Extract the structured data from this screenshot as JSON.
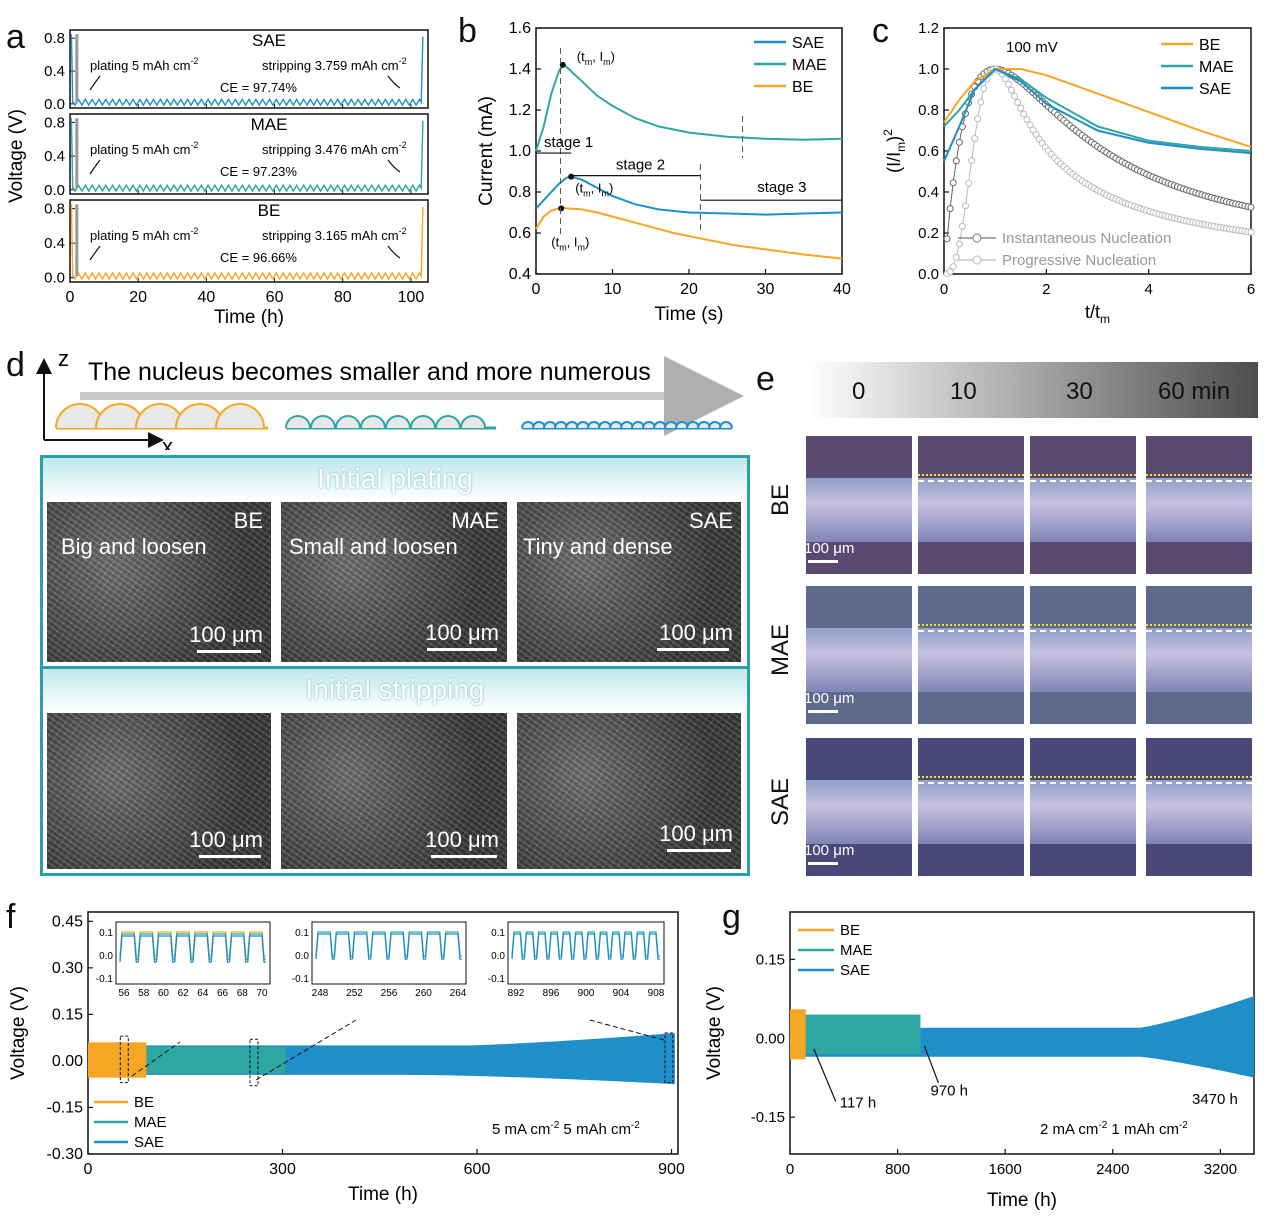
{
  "colors": {
    "BE": "#f5a623",
    "MAE": "#2ea6a1",
    "SAE": "#1f8fc9",
    "gray": "#9a9a9a",
    "teal": "#2aa0a8",
    "yellow": "#f4e21c"
  },
  "panel_labels": {
    "a": "a",
    "b": "b",
    "c": "c",
    "d": "d",
    "e": "e",
    "f": "f",
    "g": "g"
  },
  "chart_data": [
    {
      "id": "a",
      "type": "line",
      "xlabel": "Time (h)",
      "ylabel": "Voltage (V)",
      "x_ticks": [
        "0",
        "20",
        "40",
        "60",
        "80",
        "100"
      ],
      "xlim": [
        0,
        105
      ],
      "y_ticks": [
        "0.0",
        "0.4",
        "0.8"
      ],
      "ylim": [
        -0.05,
        0.9
      ],
      "subplots": [
        {
          "name": "SAE",
          "plating": "plating 5 mAh cm",
          "stripping": "stripping 3.759 mAh cm",
          "ce": "CE = 97.74%"
        },
        {
          "name": "MAE",
          "plating": "plating 5 mAh cm",
          "stripping": "stripping 3.476 mAh cm",
          "ce": "CE = 97.23%"
        },
        {
          "name": "BE",
          "plating": "plating 5 mAh cm",
          "stripping": "stripping 3.165 mAh cm",
          "ce": "CE = 96.66%"
        }
      ],
      "exponent": "-2"
    },
    {
      "id": "b",
      "type": "line",
      "xlabel": "Time (s)",
      "ylabel": "Current (mA)",
      "x_ticks": [
        "0",
        "10",
        "20",
        "30",
        "40"
      ],
      "xlim": [
        0,
        40
      ],
      "y_ticks": [
        "0.4",
        "0.6",
        "0.8",
        "1.0",
        "1.2",
        "1.4",
        "1.6"
      ],
      "ylim": [
        0.4,
        1.6
      ],
      "legend": [
        "SAE",
        "MAE",
        "BE"
      ],
      "legend_position": "top-right",
      "series": [
        {
          "name": "MAE",
          "x": [
            0,
            1,
            2,
            3,
            3.5,
            4,
            6,
            8,
            10,
            13,
            16,
            20,
            25,
            30,
            35,
            40
          ],
          "y": [
            1.0,
            1.12,
            1.28,
            1.39,
            1.42,
            1.41,
            1.34,
            1.27,
            1.22,
            1.16,
            1.12,
            1.09,
            1.07,
            1.06,
            1.055,
            1.06
          ]
        },
        {
          "name": "SAE",
          "x": [
            0,
            1,
            2,
            3,
            4,
            4.6,
            6,
            8,
            10,
            13,
            16,
            20,
            25,
            30,
            35,
            40
          ],
          "y": [
            0.72,
            0.76,
            0.8,
            0.84,
            0.87,
            0.875,
            0.86,
            0.82,
            0.78,
            0.74,
            0.715,
            0.7,
            0.695,
            0.69,
            0.695,
            0.7
          ]
        },
        {
          "name": "BE",
          "x": [
            0,
            1,
            2,
            3,
            3.5,
            4,
            6,
            8,
            10,
            14,
            18,
            22,
            26,
            30,
            35,
            40
          ],
          "y": [
            0.62,
            0.68,
            0.71,
            0.72,
            0.725,
            0.72,
            0.715,
            0.7,
            0.68,
            0.64,
            0.6,
            0.57,
            0.54,
            0.52,
            0.495,
            0.475
          ]
        }
      ],
      "annotations": {
        "tm_label": "(t",
        "im_label": ", I",
        "stage1": "stage 1",
        "stage2": "stage 2",
        "stage3": "stage 3",
        "m": "m"
      }
    },
    {
      "id": "c",
      "type": "line",
      "xlabel": "t/t",
      "xlabel_sub": "m",
      "ylabel": "(I/I",
      "ylabel_sub": "m",
      "ylabel_tail": ")",
      "ylabel_sup": "2",
      "x_ticks": [
        "0",
        "2",
        "4",
        "6"
      ],
      "xlim": [
        0,
        6
      ],
      "y_ticks": [
        "0.0",
        "0.2",
        "0.4",
        "0.6",
        "0.8",
        "1.0",
        "1.2"
      ],
      "ylim": [
        0,
        1.2
      ],
      "title": "100 mV",
      "legend": [
        "BE",
        "MAE",
        "SAE"
      ],
      "legend_position": "top-right",
      "model_legend": [
        "Instantaneous Nucleation",
        "Progressive Nucleation"
      ],
      "series": [
        {
          "name": "BE",
          "x": [
            0,
            0.3,
            0.6,
            1,
            1.5,
            2,
            3,
            4,
            5,
            6
          ],
          "y": [
            0.74,
            0.85,
            0.94,
            1.0,
            1.0,
            0.97,
            0.88,
            0.79,
            0.7,
            0.62
          ]
        },
        {
          "name": "MAE",
          "x": [
            0,
            0.3,
            0.6,
            1,
            1.5,
            2,
            3,
            4,
            5,
            6
          ],
          "y": [
            0.72,
            0.8,
            0.9,
            1.0,
            0.95,
            0.86,
            0.72,
            0.65,
            0.62,
            0.6
          ]
        },
        {
          "name": "SAE",
          "x": [
            0,
            0.3,
            0.6,
            1,
            1.5,
            2,
            3,
            4,
            5,
            6
          ],
          "y": [
            0.55,
            0.72,
            0.9,
            1.0,
            0.94,
            0.83,
            0.7,
            0.64,
            0.61,
            0.59
          ]
        }
      ]
    },
    {
      "id": "f",
      "type": "line",
      "xlabel": "Time (h)",
      "ylabel": "Voltage (V)",
      "x_ticks": [
        "0",
        "300",
        "600",
        "900"
      ],
      "xlim": [
        0,
        910
      ],
      "y_ticks": [
        "-0.30",
        "-0.15",
        "0.00",
        "0.15",
        "0.30",
        "0.45"
      ],
      "ylim": [
        -0.3,
        0.48
      ],
      "legend": [
        "BE",
        "MAE",
        "SAE"
      ],
      "legend_position": "bottom-left",
      "condition": "5 mA cm",
      "condition_mid": " 5 mAh cm",
      "exponent": "-2",
      "end_hours": {
        "BE": 90,
        "MAE": 305,
        "SAE": 905
      },
      "insets": [
        {
          "x_ticks": [
            "56",
            "58",
            "60",
            "62",
            "64",
            "66",
            "68",
            "70"
          ],
          "y_ticks": [
            "0.1",
            "0.0",
            "-0.1"
          ]
        },
        {
          "x_ticks": [
            "248",
            "252",
            "256",
            "260",
            "264"
          ],
          "y_ticks": [
            "0.1",
            "0.0",
            "-0.1"
          ]
        },
        {
          "x_ticks": [
            "892",
            "896",
            "900",
            "904",
            "908"
          ],
          "y_ticks": [
            "0.1",
            "0.0",
            "-0.1"
          ]
        }
      ]
    },
    {
      "id": "g",
      "type": "line",
      "xlabel": "Time (h)",
      "ylabel": "Voltage (V)",
      "x_ticks": [
        "0",
        "800",
        "1600",
        "2400",
        "3200"
      ],
      "xlim": [
        0,
        3450
      ],
      "y_ticks": [
        "-0.15",
        "0.00",
        "0.15"
      ],
      "ylim": [
        -0.22,
        0.24
      ],
      "legend": [
        "BE",
        "MAE",
        "SAE"
      ],
      "legend_position": "top-left",
      "condition": "2 mA cm",
      "condition_mid": " 1 mAh cm",
      "exponent": "-2",
      "end_hours": {
        "BE": 117,
        "MAE": 970,
        "SAE": 3470
      },
      "callouts": [
        "117 h",
        "970 h",
        "3470 h"
      ]
    }
  ],
  "panel_d": {
    "axis_z": "z",
    "axis_x": "x",
    "caption": "The nucleus becomes smaller and more numerous",
    "plating_title": "Initial plating",
    "stripping_title": "Initial stripping",
    "sem_plating": [
      {
        "label": "BE",
        "desc": "Big and loosen",
        "scale": "100 μm"
      },
      {
        "label": "MAE",
        "desc": "Small and loosen",
        "scale": "100 μm"
      },
      {
        "label": "SAE",
        "desc": "Tiny and dense",
        "scale": "100 μm"
      }
    ],
    "sem_stripping_scale": [
      "100 μm",
      "100 μm",
      "100 μm"
    ]
  },
  "panel_e": {
    "times": [
      "0",
      "10",
      "30",
      "60 min"
    ],
    "rows": [
      {
        "label": "BE",
        "scale": "100 μm"
      },
      {
        "label": "MAE",
        "scale": "100 μm"
      },
      {
        "label": "SAE",
        "scale": "100 μm"
      }
    ]
  }
}
